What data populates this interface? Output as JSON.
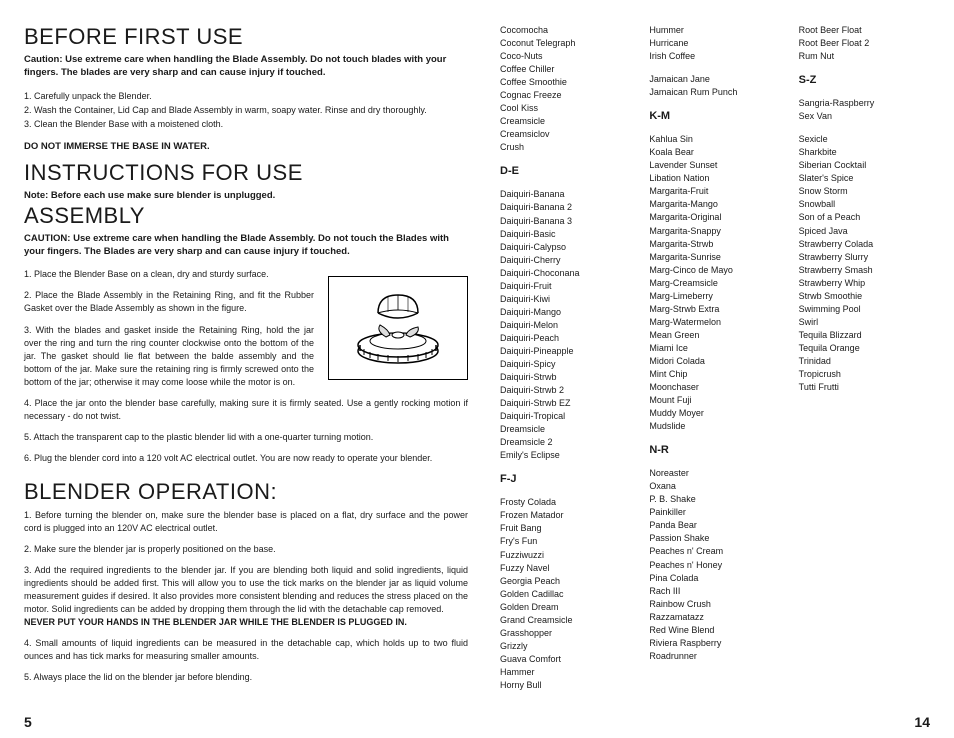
{
  "left": {
    "h_before": "BEFORE FIRST USE",
    "caution1": "Caution:  Use extreme care when handling the Blade Assembly.  Do not touch blades with your fingers.  The blades are very sharp and can cause injury if touched.",
    "steps1": [
      "1. Carefully unpack the Blender.",
      "2. Wash the Container, Lid Cap and Blade Assembly in warm, soapy water.  Rinse and dry thoroughly.",
      "3. Clean the Blender Base with a moistened cloth."
    ],
    "warn_base": "DO NOT IMMERSE THE BASE IN WATER.",
    "h_instr": "INSTRUCTIONS FOR USE",
    "note_unplug": "Note:  Before each use make sure blender is unplugged.",
    "h_assembly": "ASSEMBLY",
    "caution2": "CAUTION:   Use extreme care when handling the Blade Assembly.  Do not touch the Blades with your fingers.  The Blades are very sharp and can cause injury if touched.",
    "asm_steps_narrow": [
      "1. Place the Blender Base on a clean, dry and sturdy surface.",
      "2. Place the Blade Assembly in the Retaining Ring, and fit the Rubber Gasket over the Blade Assembly as shown in the figure.",
      "3. With the blades and gasket inside the Retaining Ring, hold the jar over the ring and turn the ring counter clockwise onto the bottom of the jar.  The gasket should lie flat between the balde assembly and the bottom of the jar.  Make sure the retaining ring is firmly screwed onto the bottom of the jar; otherwise it may come loose while the motor is on."
    ],
    "asm_steps_full": [
      "4. Place the jar onto the blender base carefully, making sure it is firmly seated.  Use a gently rocking motion if necessary - do not twist.",
      "5. Attach the transparent cap to the plastic blender lid with a one-quarter turning motion.",
      "6. Plug the blender cord into a 120 volt AC electrical outlet.  You are now ready to operate your blender."
    ],
    "h_operation": "BLENDER OPERATION:",
    "op_steps": [
      "1.  Before turning the blender on, make sure the blender base is placed on a flat, dry surface and the power cord is plugged into an 120V AC electrical outlet.",
      "2.  Make sure the blender jar is properly positioned on the base.",
      "3.  Add the required ingredients to the blender jar. If you are blending both liquid and solid ingredients, liquid ingredients should be added first. This will allow you to use the tick marks on the blender jar as liquid volume measurement guides if desired. It also provides more consistent blending and reduces the stress placed on the motor. Solid ingredients can be added by dropping them through the lid with the detachable cap removed."
    ],
    "op_warn": "NEVER PUT YOUR HANDS IN THE BLENDER JAR WHILE THE BLENDER IS PLUGGED IN.",
    "op_steps2": [
      "4.  Small amounts of liquid ingredients can be measured in the detachable cap, which holds up to two fluid ounces and has tick marks for measuring smaller amounts.",
      "5.  Always place the lid on the blender jar before blending."
    ],
    "page_num": "5"
  },
  "right": {
    "col1_top": [
      "Cocomocha",
      "Coconut Telegraph",
      "Coco-Nuts",
      "Coffee Chiller",
      "Coffee Smoothie",
      "Cognac Freeze",
      "Cool Kiss",
      "Creamsicle",
      "Creamsiclov",
      "Crush"
    ],
    "sec_DE": "D-E",
    "col1_de": [
      "Daiquiri-Banana",
      "Daiquiri-Banana 2",
      "Daiquiri-Banana 3",
      "Daiquiri-Basic",
      "Daiquiri-Calypso",
      "Daiquiri-Cherry",
      "Daiquiri-Choconana",
      "Daiquiri-Fruit",
      "Daiquiri-Kiwi",
      "Daiquiri-Mango",
      "Daiquiri-Melon",
      "Daiquiri-Peach",
      "Daiquiri-Pineapple",
      "Daiquiri-Spicy",
      "Daiquiri-Strwb",
      "Daiquiri-Strwb 2",
      "Daiquiri-Strwb EZ",
      "Daiquiri-Tropical",
      "Dreamsicle",
      "Dreamsicle 2",
      "Emily's Eclipse"
    ],
    "sec_FJ": "F-J",
    "col1_fj": [
      "Frosty Colada",
      "Frozen Matador",
      "Fruit Bang",
      "Fry's Fun",
      "Fuzziwuzzi",
      "Fuzzy Navel",
      "Georgia Peach",
      "Golden Cadillac",
      "Golden Dream",
      "Grand Creamsicle",
      "Grasshopper",
      "Grizzly",
      "Guava Comfort",
      "Hammer",
      "Horny Bull"
    ],
    "col2_top": [
      "Hummer",
      "Hurricane",
      "Irish Coffee"
    ],
    "col2_top2": [
      "Jamaican Jane",
      "Jamaican Rum Punch"
    ],
    "sec_KM": "K-M",
    "col2_km": [
      "Kahlua Sin",
      "Koala Bear",
      "Lavender Sunset",
      "Libation Nation",
      "Margarita-Fruit",
      "Margarita-Mango",
      "Margarita-Original",
      "Margarita-Snappy",
      "Margarita-Strwb",
      "Margarita-Sunrise",
      "Marg-Cinco de Mayo",
      "Marg-Creamsicle",
      "Marg-Limeberry",
      "Marg-Strwb Extra",
      "Marg-Watermelon",
      "Mean Green",
      "Miami Ice",
      "Midori Colada",
      "Mint Chip",
      "Moonchaser",
      "Mount Fuji",
      "Muddy Moyer",
      "Mudslide"
    ],
    "sec_NR": "N-R",
    "col2_nr": [
      "Noreaster",
      "Oxana",
      "P. B. Shake",
      "Painkiller",
      "Panda Bear",
      "Passion Shake",
      "Peaches n' Cream",
      "Peaches n' Honey",
      "Pina Colada",
      "Rach III",
      "Rainbow Crush",
      "Razzamatazz",
      "Red Wine Blend",
      "Riviera Raspberry",
      "Roadrunner"
    ],
    "col3_top": [
      "Root Beer Float",
      "Root Beer Float 2",
      "Rum Nut"
    ],
    "sec_SZ": "S-Z",
    "col3_sz1": [
      "Sangria-Raspberry",
      "Sex Van"
    ],
    "col3_sz2": [
      "Sexicle",
      "Sharkbite",
      "Siberian Cocktail",
      "Slater's Spice",
      "Snow Storm",
      "Snowball",
      "Son of a Peach",
      "Spiced Java",
      "Strawberry Colada",
      "Strawberry Slurry",
      "Strawberry Smash",
      "Strawberry Whip",
      "Strwb Smoothie",
      "Swimming Pool",
      "Swirl",
      "Tequila Blizzard",
      "Tequila Orange",
      "Trinidad",
      "Tropicrush",
      "Tutti Frutti"
    ],
    "page_num": "14"
  }
}
